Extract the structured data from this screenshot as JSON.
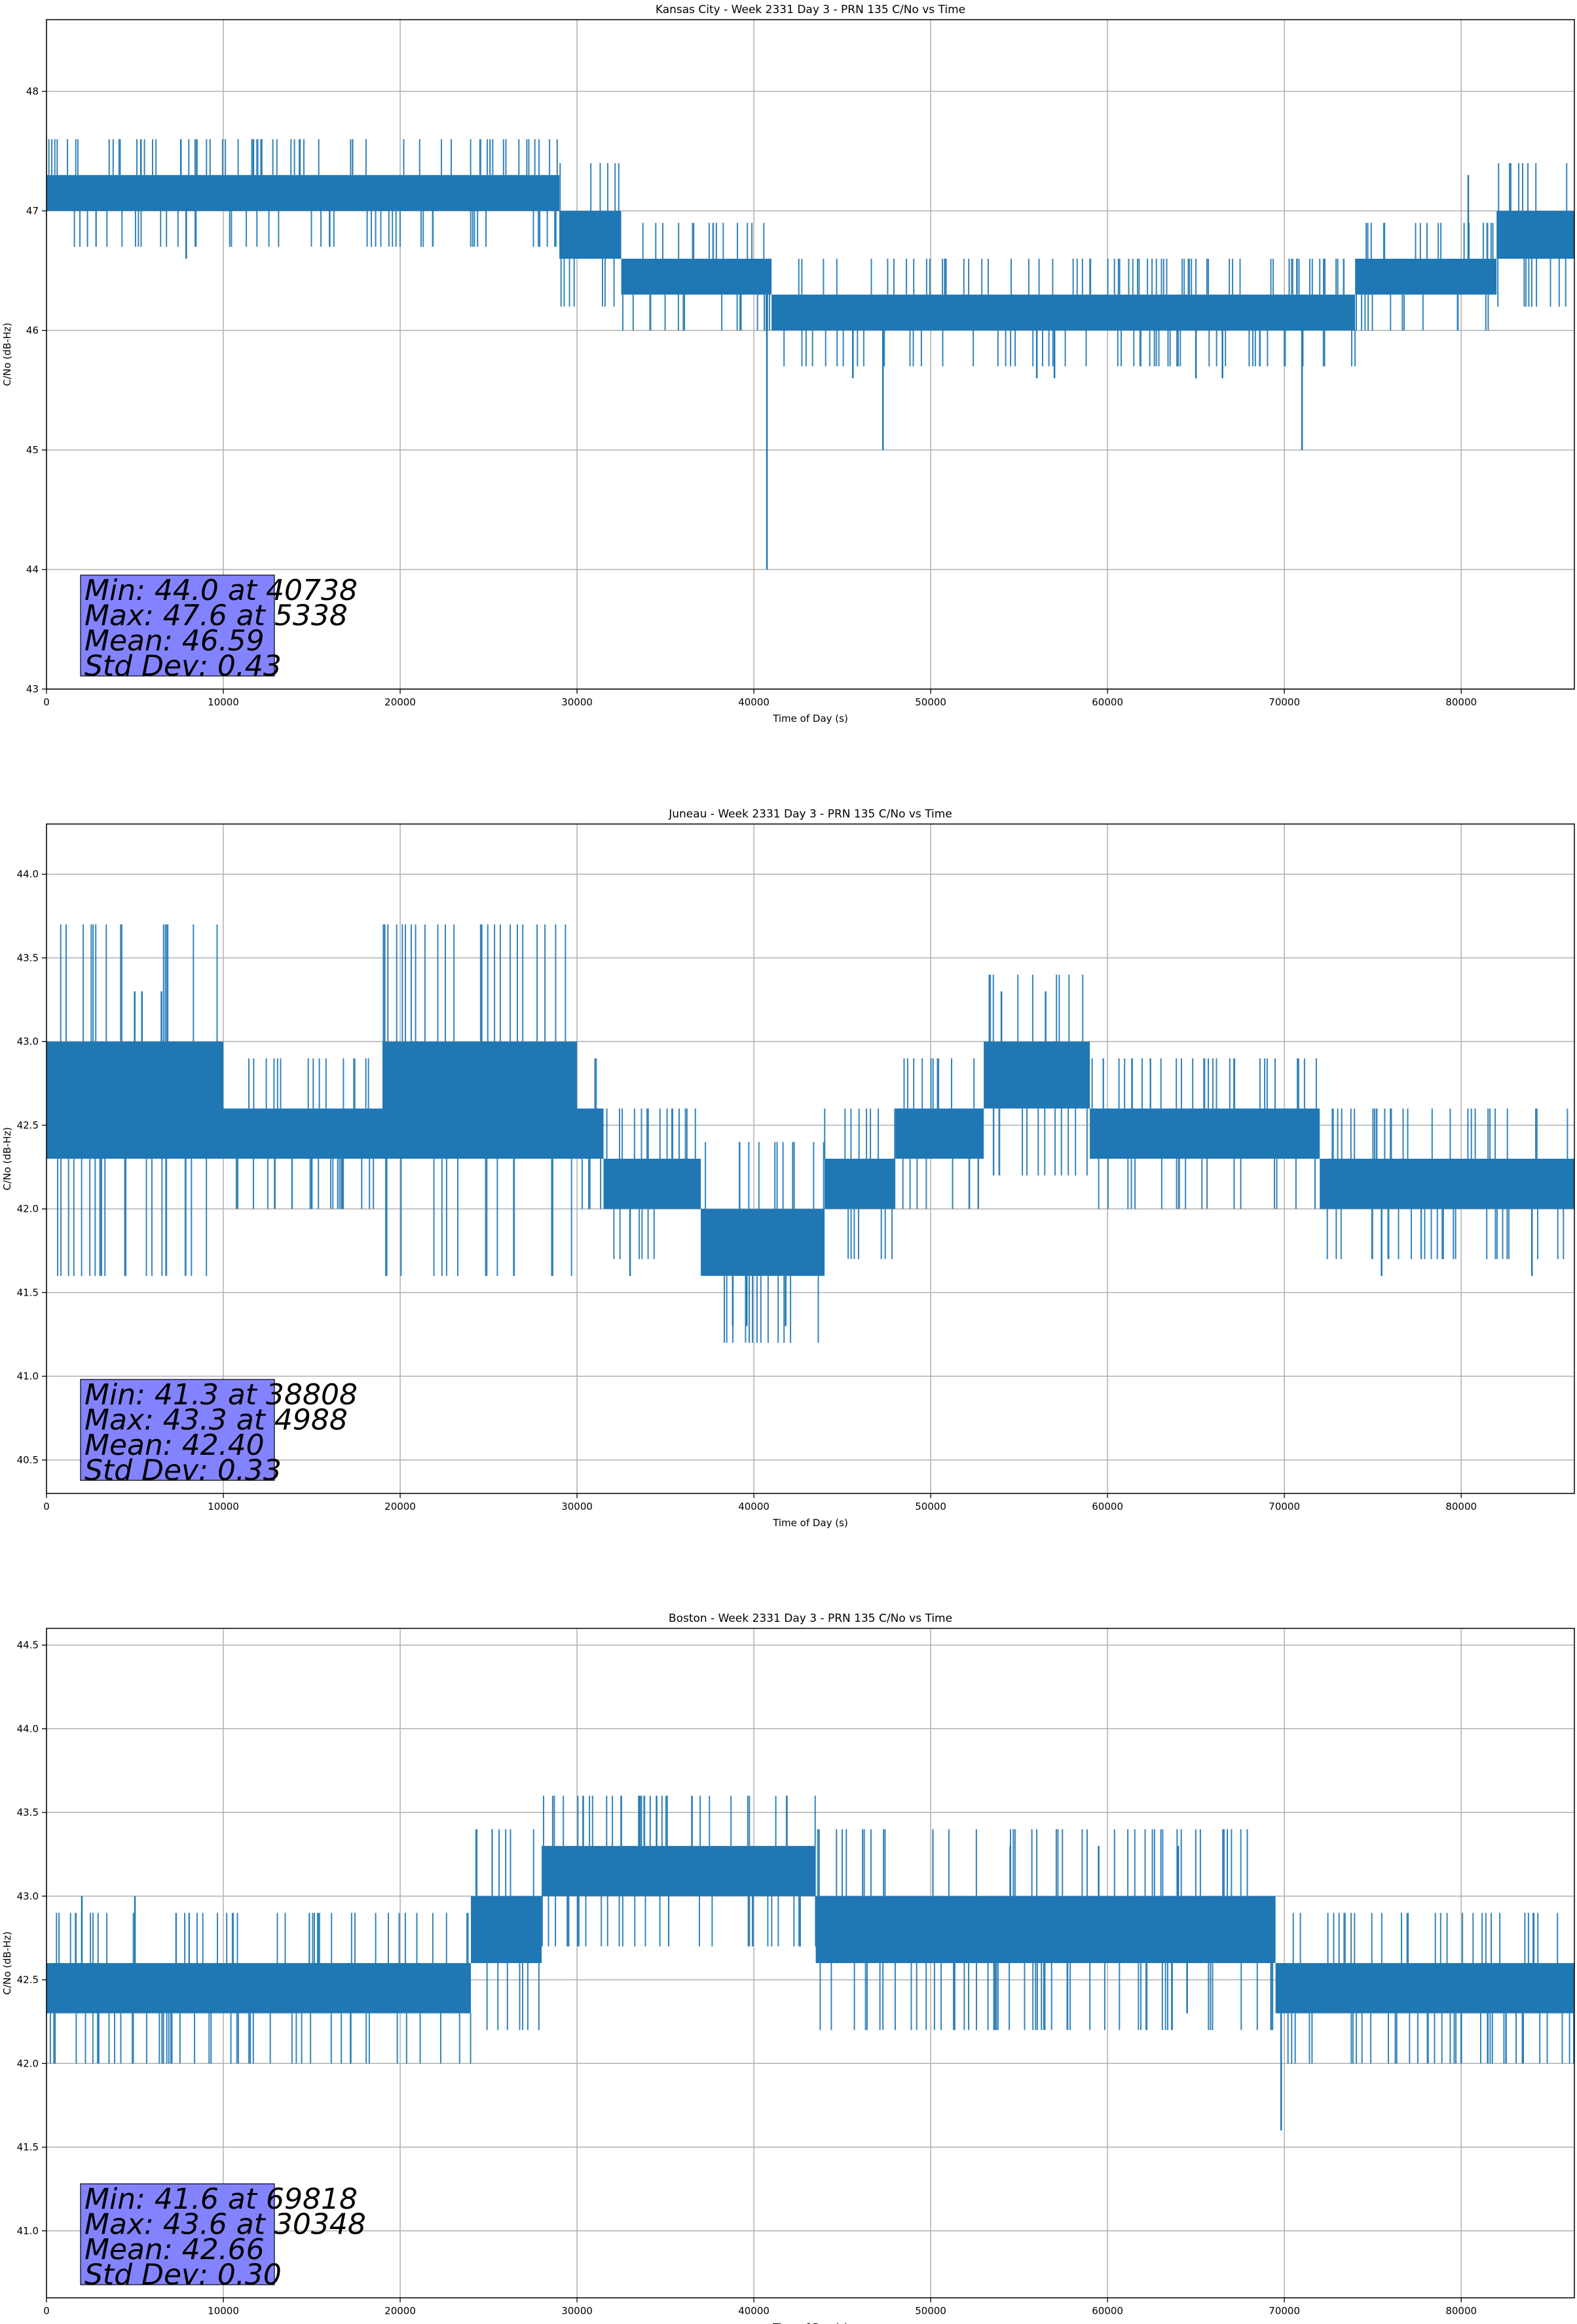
{
  "colors": {
    "series": "#1f77b4",
    "grid": "#b0b0b0",
    "stats_box": "#7f7fff",
    "background": "#ffffff"
  },
  "chart_data": [
    {
      "type": "line",
      "title": "Kansas City - Week 2331 Day 3 - PRN 135 C/No vs Time",
      "xlabel": "Time of Day (s)",
      "ylabel": "C/No (dB-Hz)",
      "xlim": [
        0,
        86400
      ],
      "ylim": [
        43,
        48.6
      ],
      "xticks": [
        0,
        10000,
        20000,
        30000,
        40000,
        50000,
        60000,
        70000,
        80000
      ],
      "yticks": [
        43,
        44,
        45,
        46,
        47,
        48
      ],
      "yticks_text": [
        "43",
        "44",
        "45",
        "46",
        "47",
        "48"
      ],
      "grid": true,
      "series": [
        {
          "bands": [
            {
              "x": [
                0,
                15000
              ],
              "lo": 47.0,
              "hi": 47.3
            },
            {
              "x": [
                15000,
                29000
              ],
              "lo": 47.0,
              "hi": 47.3
            },
            {
              "x": [
                29000,
                32500
              ],
              "lo": 46.6,
              "hi": 47.0
            },
            {
              "x": [
                32500,
                41000
              ],
              "lo": 46.3,
              "hi": 46.6
            },
            {
              "x": [
                41000,
                74000
              ],
              "lo": 46.0,
              "hi": 46.3
            },
            {
              "x": [
                74000,
                82000
              ],
              "lo": 46.3,
              "hi": 46.6
            },
            {
              "x": [
                82000,
                86400
              ],
              "lo": 46.6,
              "hi": 47.0
            }
          ],
          "spikes": [
            {
              "x": 5338,
              "lo": 47.0,
              "hi": 47.6
            },
            {
              "x": 7600,
              "lo": 47.0,
              "hi": 47.6
            },
            {
              "x": 8500,
              "lo": 47.0,
              "hi": 47.6
            },
            {
              "x": 11700,
              "lo": 47.0,
              "hi": 47.6
            },
            {
              "x": 7900,
              "lo": 46.6,
              "hi": 47.0
            },
            {
              "x": 40738,
              "lo": 44.0,
              "hi": 46.3
            },
            {
              "x": 45600,
              "lo": 45.6,
              "hi": 46.3
            },
            {
              "x": 47300,
              "lo": 45.0,
              "hi": 46.3
            },
            {
              "x": 56000,
              "lo": 45.6,
              "hi": 46.0
            },
            {
              "x": 57000,
              "lo": 45.6,
              "hi": 46.0
            },
            {
              "x": 65000,
              "lo": 45.6,
              "hi": 46.0
            },
            {
              "x": 66500,
              "lo": 45.6,
              "hi": 46.0
            },
            {
              "x": 71000,
              "lo": 45.0,
              "hi": 46.0
            },
            {
              "x": 80400,
              "lo": 46.6,
              "hi": 47.3
            }
          ]
        }
      ],
      "stats": [
        "Min: 44.0 at 40738",
        "Max: 47.6 at 5338",
        "Mean: 46.59",
        "Std Dev: 0.43"
      ]
    },
    {
      "type": "line",
      "title": "Juneau - Week 2331 Day 3 - PRN 135 C/No vs Time",
      "xlabel": "Time of Day (s)",
      "ylabel": "C/No (dB-Hz)",
      "xlim": [
        0,
        86400
      ],
      "ylim": [
        40.3,
        44.3
      ],
      "xticks": [
        0,
        10000,
        20000,
        30000,
        40000,
        50000,
        60000,
        70000,
        80000
      ],
      "yticks": [
        40.5,
        41.0,
        41.5,
        42.0,
        42.5,
        43.0,
        43.5,
        44.0
      ],
      "yticks_text": [
        "40.5",
        "41.0",
        "41.5",
        "42.0",
        "42.5",
        "43.0",
        "43.5",
        "44.0"
      ],
      "grid": true,
      "series": [
        {
          "bands": [
            {
              "x": [
                0,
                10000
              ],
              "lo": 42.3,
              "hi": 43.0
            },
            {
              "x": [
                10000,
                19000
              ],
              "lo": 42.3,
              "hi": 42.6
            },
            {
              "x": [
                19000,
                30000
              ],
              "lo": 42.3,
              "hi": 43.0
            },
            {
              "x": [
                30000,
                31500
              ],
              "lo": 42.3,
              "hi": 42.6
            },
            {
              "x": [
                31500,
                37000
              ],
              "lo": 42.0,
              "hi": 42.3
            },
            {
              "x": [
                37000,
                44000
              ],
              "lo": 41.6,
              "hi": 42.0
            },
            {
              "x": [
                44000,
                48000
              ],
              "lo": 42.0,
              "hi": 42.3
            },
            {
              "x": [
                48000,
                53000
              ],
              "lo": 42.3,
              "hi": 42.6
            },
            {
              "x": [
                53000,
                59000
              ],
              "lo": 42.6,
              "hi": 43.0
            },
            {
              "x": [
                59000,
                72000
              ],
              "lo": 42.3,
              "hi": 42.6
            },
            {
              "x": [
                72000,
                86400
              ],
              "lo": 42.0,
              "hi": 42.3
            }
          ],
          "spikes": [
            {
              "x": 4988,
              "lo": 42.6,
              "hi": 43.3
            },
            {
              "x": 5400,
              "lo": 42.6,
              "hi": 43.3
            },
            {
              "x": 6500,
              "lo": 42.6,
              "hi": 43.3
            },
            {
              "x": 15000,
              "lo": 42.0,
              "hi": 42.3
            },
            {
              "x": 16700,
              "lo": 42.0,
              "hi": 42.3
            },
            {
              "x": 33000,
              "lo": 41.6,
              "hi": 42.0
            },
            {
              "x": 38808,
              "lo": 41.3,
              "hi": 41.6
            },
            {
              "x": 39600,
              "lo": 41.3,
              "hi": 41.6
            },
            {
              "x": 41800,
              "lo": 41.3,
              "hi": 41.6
            },
            {
              "x": 54000,
              "lo": 43.0,
              "hi": 43.3
            },
            {
              "x": 56500,
              "lo": 43.0,
              "hi": 43.3
            },
            {
              "x": 75500,
              "lo": 41.6,
              "hi": 42.0
            },
            {
              "x": 84000,
              "lo": 41.6,
              "hi": 42.0
            }
          ]
        }
      ],
      "stats": [
        "Min: 41.3 at 38808",
        "Max: 43.3 at 4988",
        "Mean: 42.40",
        "Std Dev: 0.33"
      ]
    },
    {
      "type": "line",
      "title": "Boston - Week 2331 Day 3 - PRN 135 C/No vs Time",
      "xlabel": "Time of Day (s)",
      "ylabel": "C/No (dB-Hz)",
      "xlim": [
        0,
        86400
      ],
      "ylim": [
        40.6,
        44.6
      ],
      "xticks": [
        0,
        10000,
        20000,
        30000,
        40000,
        50000,
        60000,
        70000,
        80000
      ],
      "yticks": [
        41.0,
        41.5,
        42.0,
        42.5,
        43.0,
        43.5,
        44.0,
        44.5
      ],
      "yticks_text": [
        "41.0",
        "41.5",
        "42.0",
        "42.5",
        "43.0",
        "43.5",
        "44.0",
        "44.5"
      ],
      "grid": true,
      "series": [
        {
          "bands": [
            {
              "x": [
                0,
                24000
              ],
              "lo": 42.3,
              "hi": 42.6
            },
            {
              "x": [
                24000,
                28000
              ],
              "lo": 42.6,
              "hi": 43.0
            },
            {
              "x": [
                28000,
                43500
              ],
              "lo": 43.0,
              "hi": 43.3
            },
            {
              "x": [
                43500,
                69500
              ],
              "lo": 42.6,
              "hi": 43.0
            },
            {
              "x": [
                69500,
                86400
              ],
              "lo": 42.3,
              "hi": 42.6
            }
          ],
          "spikes": [
            {
              "x": 2000,
              "lo": 42.6,
              "hi": 43.0
            },
            {
              "x": 5000,
              "lo": 42.6,
              "hi": 43.0
            },
            {
              "x": 17200,
              "lo": 42.0,
              "hi": 42.3
            },
            {
              "x": 30348,
              "lo": 43.3,
              "hi": 43.6
            },
            {
              "x": 32500,
              "lo": 43.3,
              "hi": 43.6
            },
            {
              "x": 33500,
              "lo": 43.3,
              "hi": 43.6
            },
            {
              "x": 34500,
              "lo": 43.3,
              "hi": 43.6
            },
            {
              "x": 36500,
              "lo": 43.3,
              "hi": 43.6
            },
            {
              "x": 54500,
              "lo": 43.0,
              "hi": 43.3
            },
            {
              "x": 59500,
              "lo": 43.0,
              "hi": 43.3
            },
            {
              "x": 64000,
              "lo": 43.0,
              "hi": 43.3
            },
            {
              "x": 64500,
              "lo": 42.3,
              "hi": 42.6
            },
            {
              "x": 69818,
              "lo": 41.6,
              "hi": 42.3
            },
            {
              "x": 80000,
              "lo": 42.0,
              "hi": 42.3
            },
            {
              "x": 81500,
              "lo": 42.0,
              "hi": 42.3
            },
            {
              "x": 83500,
              "lo": 42.0,
              "hi": 42.3
            }
          ]
        }
      ],
      "stats": [
        "Min: 41.6 at 69818",
        "Max: 43.6 at 30348",
        "Mean: 42.66",
        "Std Dev: 0.30"
      ]
    }
  ]
}
